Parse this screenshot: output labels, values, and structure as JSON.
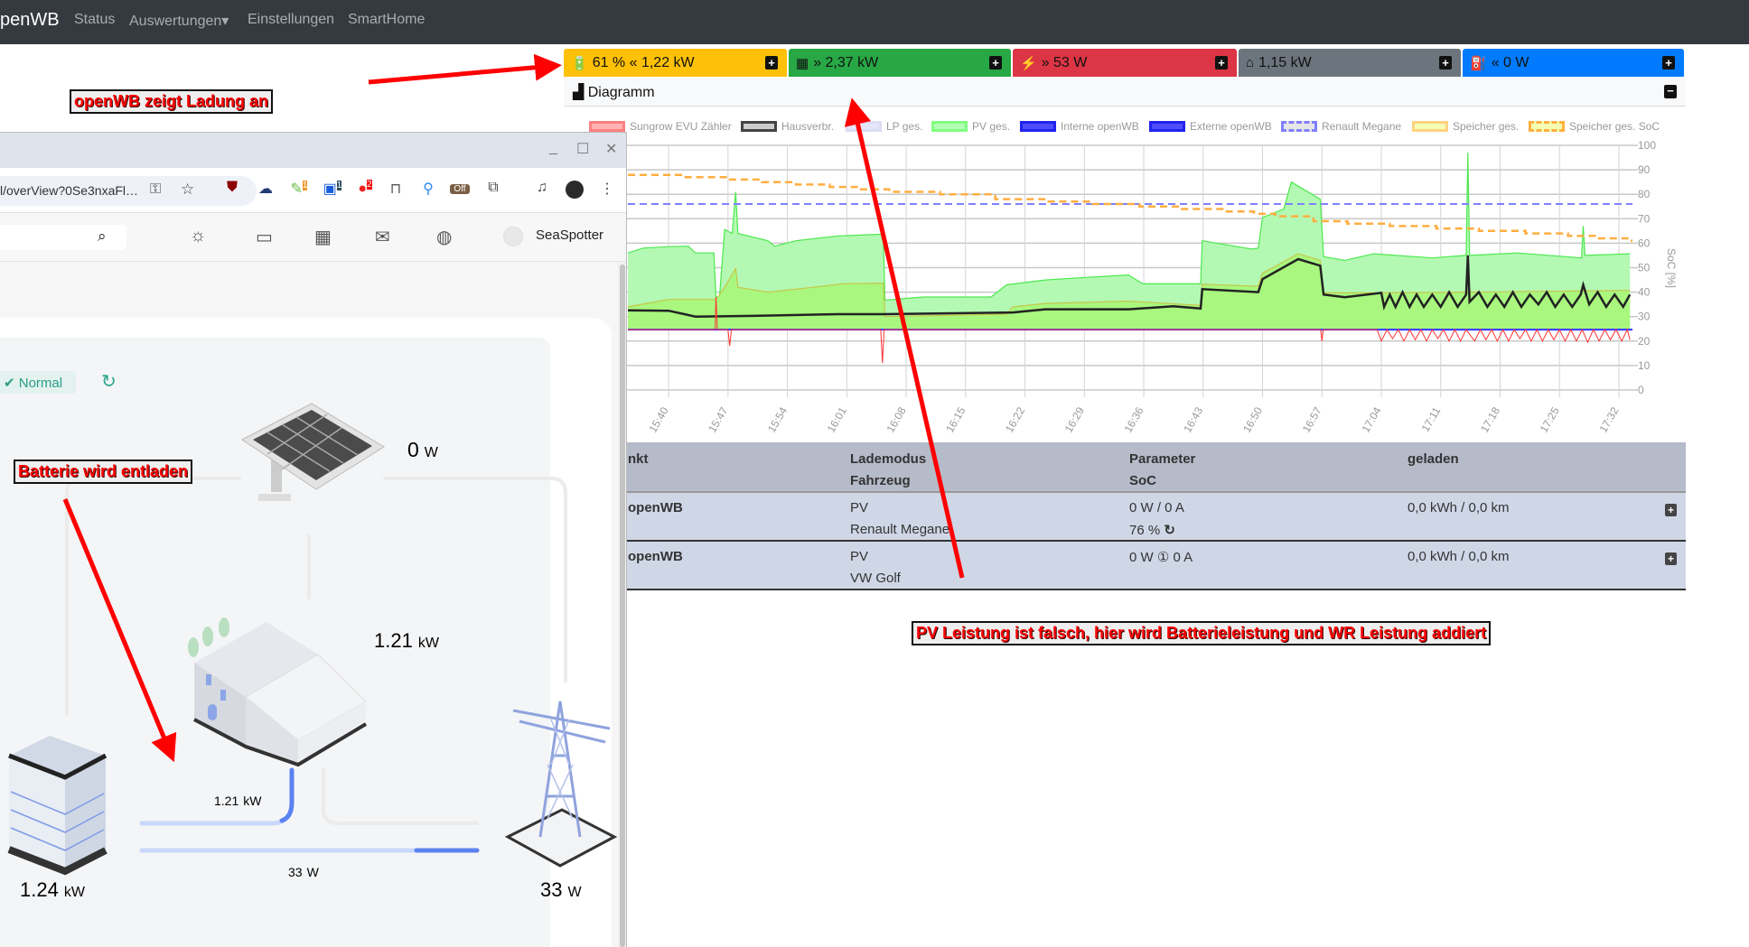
{
  "navbar": {
    "brand": "penWB",
    "items": [
      "Status",
      "Auswertungen",
      "Einstellungen",
      "SmartHome"
    ],
    "dropdown_caret": "▾"
  },
  "status_bars": [
    {
      "icon": "car-battery-icon",
      "glyph": "🔋",
      "text": "61 % « 1,22 kW",
      "color": "#ffc107"
    },
    {
      "icon": "solar-panel-icon",
      "glyph": "▦",
      "text": "» 2,37 kW",
      "color": "#28a745"
    },
    {
      "icon": "power-tower-icon",
      "glyph": "⚡",
      "text": "» 53 W",
      "color": "#dc3545"
    },
    {
      "icon": "home-icon",
      "glyph": "⌂",
      "text": "1,15 kW",
      "color": "#6c757d"
    },
    {
      "icon": "charging-station-icon",
      "glyph": "⛽",
      "text": "« 0 W",
      "color": "#007bff"
    }
  ],
  "plus_glyph": "+",
  "minus_glyph": "−",
  "diagram": {
    "title": "Diagramm",
    "icon": "area-chart-icon"
  },
  "legend": [
    {
      "label": "Sungrow EVU Zähler",
      "fill": "#ffb3b3",
      "stroke": "#ff8080",
      "dash": false
    },
    {
      "label": "Hausverbr.",
      "fill": "#cccccc",
      "stroke": "#444444",
      "dash": false
    },
    {
      "label": "LP ges.",
      "fill": "#e6e6fa",
      "stroke": "#dcdcf5",
      "dash": false
    },
    {
      "label": "PV ges.",
      "fill": "#b3ffb3",
      "stroke": "#80ff80",
      "dash": false
    },
    {
      "label": "Interne openWB",
      "fill": "#4d4dff",
      "stroke": "#2222ee",
      "dash": false
    },
    {
      "label": "Externe openWB",
      "fill": "#4d4dff",
      "stroke": "#2222ee",
      "dash": false
    },
    {
      "label": "Renault Megane",
      "fill": "#e6e6e6",
      "stroke": "#8080ff",
      "dash": true
    },
    {
      "label": "Speicher ges.",
      "fill": "#f5ffb3",
      "stroke": "#ffd280",
      "dash": false
    },
    {
      "label": "Speicher ges. SoC",
      "fill": "#f5ffb3",
      "stroke": "#ffb040",
      "dash": true
    }
  ],
  "chart_data": {
    "type": "line",
    "xlim": [
      "15:35:12",
      "17:33:36"
    ],
    "x_ticks": [
      "15:40",
      "15:47",
      "15:54",
      "16:01",
      "16:08",
      "16:15",
      "16:22",
      "16:29",
      "16:36",
      "16:43",
      "16:50",
      "16:57",
      "17:04",
      "17:11",
      "17:18",
      "17:25",
      "17:32"
    ],
    "y2_label": "SoC [%]",
    "y2lim": [
      0,
      100
    ],
    "y2_ticks": [
      0,
      10,
      20,
      30,
      40,
      50,
      60,
      70,
      80,
      90,
      100
    ],
    "grid": true,
    "series": [
      {
        "name": "PV ges.",
        "kind": "area",
        "fill": "#b3f9b3",
        "stroke": "#4ee84e",
        "points": [
          [
            "15:35:12",
            56
          ],
          [
            "15:37:00",
            58
          ],
          [
            "15:40:00",
            58.6
          ],
          [
            "15:42:20",
            58.8
          ],
          [
            "15:43:10",
            56
          ],
          [
            "15:45:20",
            56
          ],
          [
            "15:45:35",
            38
          ],
          [
            "15:46:00",
            38
          ],
          [
            "15:46:36",
            65.6
          ],
          [
            "15:47:30",
            64
          ],
          [
            "15:47:54",
            81
          ],
          [
            "15:48:10",
            64
          ],
          [
            "15:51:42",
            61
          ],
          [
            "15:52:30",
            58.8
          ],
          [
            "15:55:00",
            61
          ],
          [
            "16:00:00",
            63
          ],
          [
            "16:05:18",
            63.7
          ],
          [
            "16:05:30",
            36.7
          ],
          [
            "16:10:00",
            38
          ],
          [
            "16:18:00",
            38
          ],
          [
            "16:19:50",
            43
          ],
          [
            "16:24:24",
            45
          ],
          [
            "16:29:06",
            46
          ],
          [
            "16:34:12",
            47
          ],
          [
            "16:35:54",
            43.4
          ],
          [
            "16:42:42",
            43.4
          ],
          [
            "16:42:54",
            61
          ],
          [
            "16:48:42",
            57.6
          ],
          [
            "16:49:30",
            58
          ],
          [
            "16:50:00",
            70.5
          ],
          [
            "16:52:30",
            74
          ],
          [
            "16:53:24",
            85
          ],
          [
            "16:56:48",
            78
          ],
          [
            "16:57:12",
            54.5
          ],
          [
            "16:59:42",
            53
          ],
          [
            "17:03:06",
            55.7
          ],
          [
            "17:10:00",
            54
          ],
          [
            "17:14:00",
            55
          ],
          [
            "17:14:12",
            97
          ],
          [
            "17:14:24",
            55
          ],
          [
            "17:20:00",
            56
          ],
          [
            "17:27:36",
            54
          ],
          [
            "17:27:48",
            67
          ],
          [
            "17:28:00",
            55
          ],
          [
            "17:33:18",
            55.7
          ]
        ]
      },
      {
        "name": "Speicher ges.",
        "kind": "area",
        "fill": "#a9f77f",
        "stroke": "#c6c64a",
        "points": [
          [
            "15:35:12",
            34
          ],
          [
            "15:40:00",
            37
          ],
          [
            "15:45:35",
            37
          ],
          [
            "15:46:36",
            42
          ],
          [
            "15:47:54",
            49.6
          ],
          [
            "15:48:10",
            42
          ],
          [
            "15:51:42",
            40
          ],
          [
            "15:56:00",
            41.6
          ],
          [
            "16:00:30",
            43.4
          ],
          [
            "16:05:18",
            43.7
          ],
          [
            "16:05:30",
            30
          ],
          [
            "16:19:50",
            31
          ],
          [
            "16:20:36",
            34
          ],
          [
            "16:24:24",
            35.4
          ],
          [
            "16:34:12",
            36.3
          ],
          [
            "16:42:42",
            34.6
          ],
          [
            "16:42:54",
            43.2
          ],
          [
            "16:49:30",
            42.4
          ],
          [
            "16:50:00",
            47.7
          ],
          [
            "16:54:12",
            55.7
          ],
          [
            "16:56:48",
            53
          ],
          [
            "16:57:12",
            39.7
          ],
          [
            "17:03:06",
            39.7
          ],
          [
            "17:14:12",
            40
          ],
          [
            "17:33:18",
            40.7
          ]
        ]
      },
      {
        "name": "Hausverbr.",
        "kind": "line",
        "stroke": "#222222",
        "width": 2.5,
        "points": [
          [
            "15:35:12",
            32.6
          ],
          [
            "15:40:00",
            32.4
          ],
          [
            "15:43:10",
            30
          ],
          [
            "15:50:00",
            30.3
          ],
          [
            "16:00:00",
            31
          ],
          [
            "16:05:18",
            31
          ],
          [
            "16:20:36",
            31.7
          ],
          [
            "16:24:24",
            33
          ],
          [
            "16:34:12",
            33
          ],
          [
            "16:39:30",
            34.2
          ],
          [
            "16:42:42",
            33.3
          ],
          [
            "16:42:54",
            41.2
          ],
          [
            "16:49:30",
            40
          ],
          [
            "16:50:00",
            45.3
          ],
          [
            "16:54:12",
            53.5
          ],
          [
            "16:56:48",
            50.8
          ],
          [
            "16:57:12",
            39
          ],
          [
            "16:59:42",
            37.9
          ],
          [
            "17:04:00",
            39.7
          ],
          [
            "17:04:20",
            34
          ],
          [
            "17:05:00",
            39
          ],
          [
            "17:05:40",
            34
          ],
          [
            "17:06:30",
            40
          ],
          [
            "17:07:20",
            34
          ],
          [
            "17:08:10",
            39
          ],
          [
            "17:09:00",
            34
          ],
          [
            "17:10:00",
            39
          ],
          [
            "17:11:00",
            34
          ],
          [
            "17:12:00",
            40
          ],
          [
            "17:13:00",
            34
          ],
          [
            "17:14:00",
            39
          ],
          [
            "17:14:12",
            55
          ],
          [
            "17:14:24",
            36
          ],
          [
            "17:15:30",
            40
          ],
          [
            "17:16:30",
            34
          ],
          [
            "17:17:30",
            39
          ],
          [
            "17:18:30",
            34
          ],
          [
            "17:19:30",
            40
          ],
          [
            "17:20:30",
            34
          ],
          [
            "17:21:30",
            39
          ],
          [
            "17:22:30",
            35
          ],
          [
            "17:23:30",
            40
          ],
          [
            "17:24:30",
            34
          ],
          [
            "17:25:30",
            39
          ],
          [
            "17:26:30",
            34
          ],
          [
            "17:27:30",
            39
          ],
          [
            "17:27:48",
            43
          ],
          [
            "17:28:30",
            35
          ],
          [
            "17:29:30",
            40
          ],
          [
            "17:30:30",
            34
          ],
          [
            "17:31:30",
            39
          ],
          [
            "17:32:30",
            34
          ],
          [
            "17:33:18",
            39
          ]
        ]
      },
      {
        "name": "Interne openWB",
        "kind": "line",
        "stroke": "#3333ff",
        "width": 2,
        "points": [
          [
            "15:35:12",
            24.7
          ],
          [
            "17:33:36",
            24.7
          ]
        ]
      },
      {
        "name": "Sungrow EVU Zähler",
        "kind": "line",
        "stroke": "#ff3030",
        "width": 1,
        "points": [
          [
            "15:35:12",
            24.7
          ],
          [
            "15:45:30",
            24.7
          ],
          [
            "15:45:35",
            38
          ],
          [
            "15:45:45",
            24.7
          ],
          [
            "15:47:00",
            24.7
          ],
          [
            "15:47:12",
            18
          ],
          [
            "15:47:24",
            24.7
          ],
          [
            "16:05:00",
            24.7
          ],
          [
            "16:05:12",
            11
          ],
          [
            "16:05:24",
            24.7
          ],
          [
            "16:56:50",
            24.7
          ],
          [
            "16:57:00",
            20
          ],
          [
            "16:57:10",
            24.7
          ],
          [
            "17:03:30",
            24.7
          ],
          [
            "17:04:00",
            20
          ],
          [
            "17:04:40",
            24.7
          ],
          [
            "17:05:20",
            21
          ],
          [
            "17:06:00",
            24.7
          ],
          [
            "17:06:40",
            20
          ],
          [
            "17:07:20",
            24.7
          ],
          [
            "17:08:00",
            20.5
          ],
          [
            "17:08:40",
            24.7
          ],
          [
            "17:09:20",
            20
          ],
          [
            "17:10:00",
            24.7
          ],
          [
            "17:10:40",
            21
          ],
          [
            "17:11:20",
            24.7
          ],
          [
            "17:12:00",
            20
          ],
          [
            "17:12:40",
            24.7
          ],
          [
            "17:13:20",
            20
          ],
          [
            "17:14:00",
            24.7
          ],
          [
            "17:15:00",
            20
          ],
          [
            "17:15:40",
            24.7
          ],
          [
            "17:16:20",
            20.5
          ],
          [
            "17:17:00",
            24.7
          ],
          [
            "17:17:40",
            20
          ],
          [
            "17:18:20",
            24.7
          ],
          [
            "17:19:00",
            20
          ],
          [
            "17:19:40",
            24.7
          ],
          [
            "17:20:20",
            21
          ],
          [
            "17:21:00",
            24.7
          ],
          [
            "17:21:40",
            20
          ],
          [
            "17:22:20",
            24.7
          ],
          [
            "17:23:00",
            20
          ],
          [
            "17:23:40",
            24.7
          ],
          [
            "17:24:20",
            20.5
          ],
          [
            "17:25:00",
            24.7
          ],
          [
            "17:25:40",
            20
          ],
          [
            "17:26:20",
            24.7
          ],
          [
            "17:27:00",
            20
          ],
          [
            "17:27:40",
            24.7
          ],
          [
            "17:28:20",
            19.5
          ],
          [
            "17:29:00",
            24.7
          ],
          [
            "17:29:40",
            20
          ],
          [
            "17:30:20",
            24.7
          ],
          [
            "17:31:00",
            20.5
          ],
          [
            "17:31:40",
            24.7
          ],
          [
            "17:32:20",
            20
          ],
          [
            "17:33:00",
            24.7
          ],
          [
            "17:33:18",
            20.5
          ]
        ]
      },
      {
        "name": "Renault Megane",
        "kind": "line",
        "stroke": "#8080ff",
        "width": 2,
        "dash": true,
        "axis": "soc",
        "points": [
          [
            "15:35:12",
            76
          ],
          [
            "17:33:36",
            76
          ]
        ]
      },
      {
        "name": "Speicher ges. SoC",
        "kind": "step",
        "stroke": "#ffae40",
        "width": 2.5,
        "dash": true,
        "axis": "soc",
        "points": [
          [
            "15:35:12",
            87.9
          ],
          [
            "15:42:00",
            87
          ],
          [
            "15:47:00",
            86
          ],
          [
            "15:51:00",
            85
          ],
          [
            "15:55:00",
            84
          ],
          [
            "15:59:00",
            83
          ],
          [
            "16:02:30",
            82
          ],
          [
            "16:06:00",
            81
          ],
          [
            "16:12:00",
            80
          ],
          [
            "16:18:30",
            78
          ],
          [
            "16:24:30",
            77
          ],
          [
            "16:30:00",
            76
          ],
          [
            "16:35:30",
            75
          ],
          [
            "16:40:30",
            74
          ],
          [
            "16:45:30",
            73
          ],
          [
            "16:49:00",
            72
          ],
          [
            "16:51:30",
            71
          ],
          [
            "16:56:00",
            69
          ],
          [
            "17:00:00",
            68
          ],
          [
            "17:05:00",
            67
          ],
          [
            "17:10:30",
            66
          ],
          [
            "17:15:30",
            65
          ],
          [
            "17:21:00",
            64
          ],
          [
            "17:26:00",
            63
          ],
          [
            "17:29:30",
            62
          ],
          [
            "17:33:00",
            61
          ],
          [
            "17:33:36",
            61
          ]
        ]
      }
    ]
  },
  "table": {
    "headers": [
      [
        "nkt",
        ""
      ],
      [
        "Lademodus",
        "Fahrzeug"
      ],
      [
        "Parameter",
        "SoC"
      ],
      [
        "geladen",
        ""
      ]
    ],
    "rows": [
      {
        "name": "openWB",
        "mode": "PV",
        "vehicle": "Renault Megane",
        "param": "0 W / 0 A",
        "soc": "76 %",
        "refresh": "↻",
        "charged": "0,0 kWh / 0,0 km"
      },
      {
        "name": "openWB",
        "mode": "PV",
        "vehicle": "VW Golf",
        "param": "0 W ① 0 A",
        "soc": "",
        "refresh": "",
        "charged": "0,0 kWh / 0,0 km"
      }
    ]
  },
  "annotations": [
    "openWB zeigt Ladung an",
    "Batterie wird entladen",
    "PV Leistung ist falsch, hier wird Batterieleistung und WR Leistung addiert"
  ],
  "overlay_window": {
    "controls": [
      "_",
      "☐",
      "✕"
    ],
    "url": "l/overView?0Se3nxaFl…",
    "extension_icons": [
      "ublock-icon",
      "cloud-icon",
      "tool-icon",
      "bitwarden-icon",
      "tomato-icon",
      "bookmark-icon",
      "pin-icon",
      "off-icon",
      "extensions-icon",
      "media-icon",
      "profile-icon",
      "menu-icon"
    ],
    "ext_badges": {
      "tool": "1",
      "bitwarden": "1",
      "tomato": "2",
      "off": "Off"
    },
    "user": "SeaSpotter",
    "status_badge": "Normal",
    "flow": {
      "pv": "0",
      "pv_unit": "W",
      "home": "1.21",
      "home_unit": "kW",
      "battery": "1.24",
      "battery_unit": "kW",
      "grid": "33",
      "grid_unit": "W",
      "battery_flow": "1.21",
      "battery_flow_unit": "kW",
      "grid_flow": "33",
      "grid_flow_unit": "W"
    }
  }
}
